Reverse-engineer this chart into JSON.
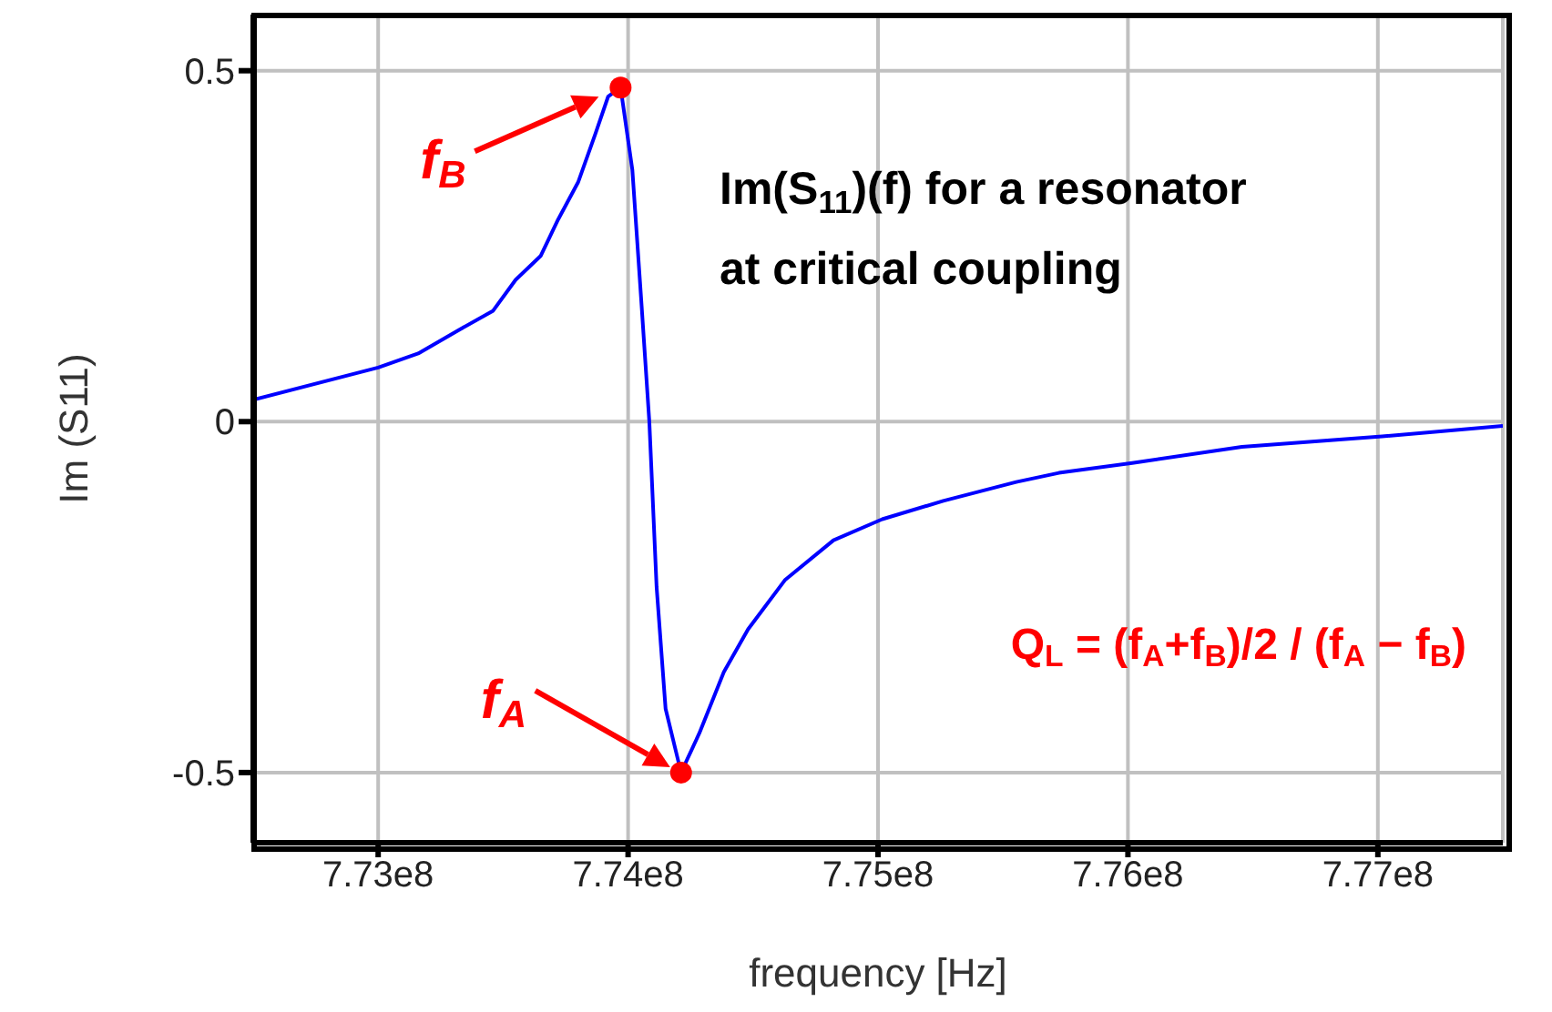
{
  "chart_data": {
    "type": "line",
    "xlabel": "frequency [Hz]",
    "ylabel": "Im (S11)",
    "xlim": [
      772500000,
      777500000
    ],
    "xticks": [
      {
        "value": 773000000,
        "label": "7.73e8"
      },
      {
        "value": 774000000,
        "label": "7.74e8"
      },
      {
        "value": 775000000,
        "label": "7.75e8"
      },
      {
        "value": 776000000,
        "label": "7.76e8"
      },
      {
        "value": 777000000,
        "label": "7.77e8"
      }
    ],
    "ylim": [
      -0.6,
      0.58
    ],
    "yticks": [
      -0.5,
      0,
      0.5
    ],
    "grid": true,
    "marker": "none",
    "line_style": "solid",
    "series": [
      {
        "color": "#0000ff",
        "x": [
          772500000,
          773000000,
          773160000,
          773330000,
          773460000,
          773550000,
          773650000,
          773720000,
          773800000,
          773870000,
          773920000,
          773970000,
          774017000,
          774054000,
          774085000,
          774114000,
          774150000,
          774212000,
          774285000,
          774383000,
          774480000,
          774627000,
          774822000,
          775017000,
          775261000,
          775553000,
          775724000,
          776017000,
          776456000,
          777017000,
          777500000
        ],
        "values": [
          0.031,
          0.077,
          0.097,
          0.132,
          0.158,
          0.202,
          0.236,
          0.288,
          0.341,
          0.411,
          0.463,
          0.476,
          0.359,
          0.166,
          0,
          -0.235,
          -0.409,
          -0.5,
          -0.444,
          -0.357,
          -0.296,
          -0.226,
          -0.169,
          -0.139,
          -0.113,
          -0.086,
          -0.073,
          -0.059,
          -0.036,
          -0.021,
          -0.006
        ]
      },
      {
        "type": "scatter",
        "color": "#ff0000",
        "marker": "circle",
        "x": [
          773970000,
          774212000
        ],
        "values": [
          0.476,
          -0.5
        ]
      }
    ],
    "annotations": [
      {
        "text": "f$_{B}$",
        "x": 773970000,
        "y": 0.476
      },
      {
        "text": "f$_{A}$",
        "x": 774212000,
        "y": -0.5
      },
      "Im(S$_{11}$)(f) for a resonator at critical coupling",
      "Q$_{L}$ = (f$_{A}$+f$_{B}$)/2 / (f$_{A}$ − f$_{B}$)"
    ]
  }
}
